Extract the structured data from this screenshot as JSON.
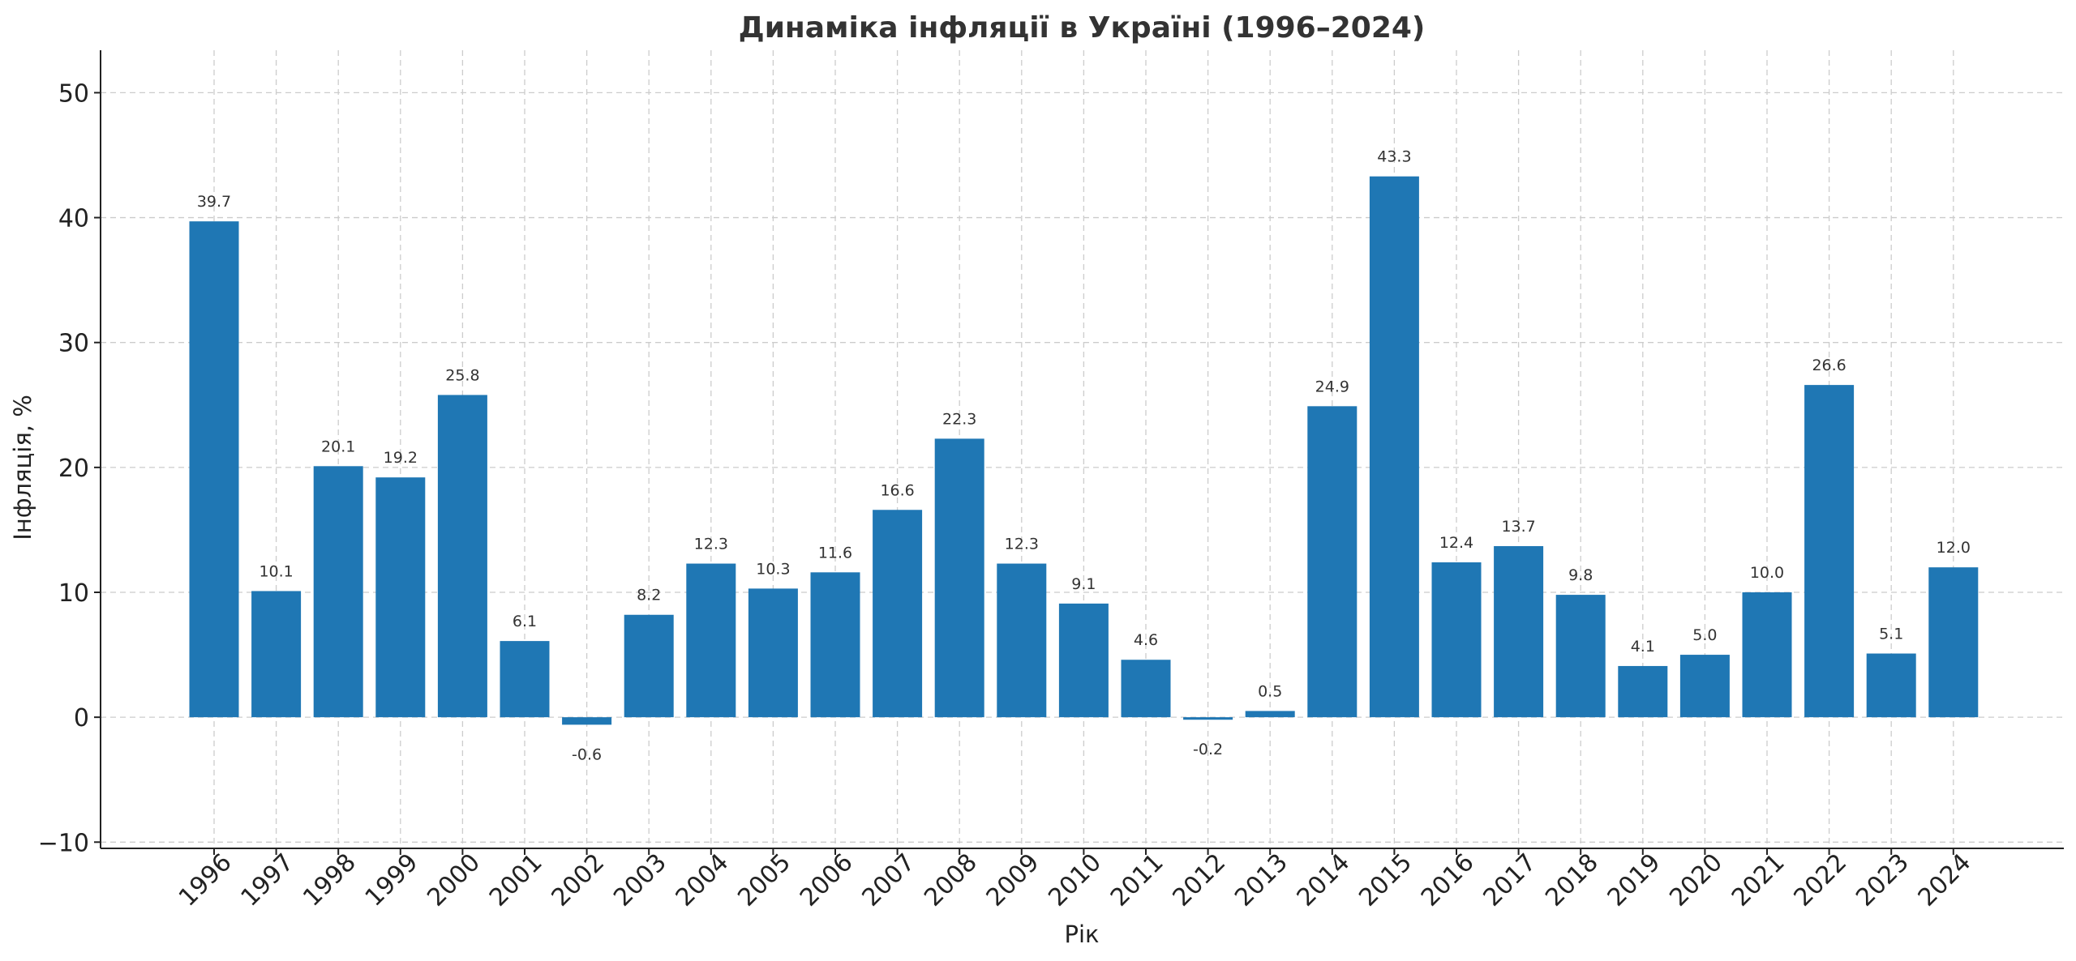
{
  "chart_data": {
    "type": "bar",
    "title": "Динаміка інфляції в Україні (1996–2024)",
    "xlabel": "Рік",
    "ylabel": "Інфляція, %",
    "categories": [
      "1996",
      "1997",
      "1998",
      "1999",
      "2000",
      "2001",
      "2002",
      "2003",
      "2004",
      "2005",
      "2006",
      "2007",
      "2008",
      "2009",
      "2010",
      "2011",
      "2012",
      "2013",
      "2014",
      "2015",
      "2016",
      "2017",
      "2018",
      "2019",
      "2020",
      "2021",
      "2022",
      "2023",
      "2024"
    ],
    "values": [
      39.7,
      10.1,
      20.1,
      19.2,
      25.8,
      6.1,
      -0.6,
      8.2,
      12.3,
      10.3,
      11.6,
      16.6,
      22.3,
      12.3,
      9.1,
      4.6,
      -0.2,
      0.5,
      24.9,
      43.3,
      12.4,
      13.7,
      9.8,
      4.1,
      5.0,
      10.0,
      26.6,
      5.1,
      12.0
    ],
    "value_labels": [
      "39.7",
      "10.1",
      "20.1",
      "19.2",
      "25.8",
      "6.1",
      "-0.6",
      "8.2",
      "12.3",
      "10.3",
      "11.6",
      "16.6",
      "22.3",
      "12.3",
      "9.1",
      "4.6",
      "-0.2",
      "0.5",
      "24.9",
      "43.3",
      "12.4",
      "13.7",
      "9.8",
      "4.1",
      "5.0",
      "10.0",
      "26.6",
      "5.1",
      "12.0"
    ],
    "ylim": [
      -10.5,
      53.4
    ],
    "yticks": [
      -10,
      0,
      10,
      20,
      30,
      40,
      50
    ],
    "ytick_labels": [
      "−10",
      "0",
      "10",
      "20",
      "30",
      "40",
      "50"
    ],
    "grid": true,
    "bar_color": "#1f77b4"
  }
}
